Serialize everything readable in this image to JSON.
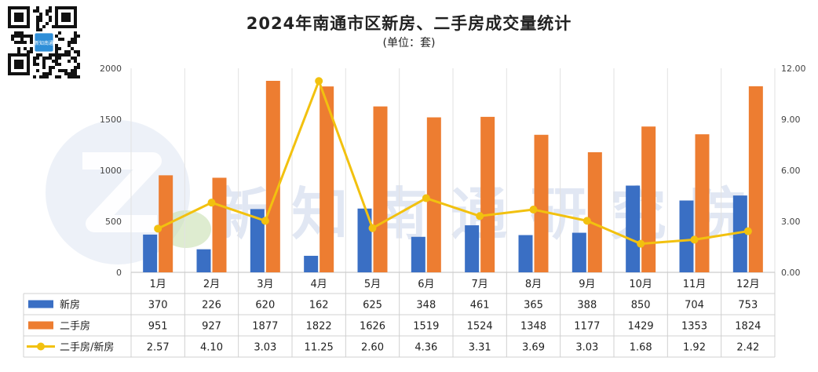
{
  "chart_data": {
    "type": "bar",
    "title": "2024年南通市区新房、二手房成交量统计",
    "subtitle": "(单位：套)",
    "categories": [
      "1月",
      "2月",
      "3月",
      "4月",
      "5月",
      "6月",
      "7月",
      "8月",
      "9月",
      "10月",
      "11月",
      "12月"
    ],
    "series": [
      {
        "name": "新房",
        "type": "bar",
        "axis": "left",
        "color": "#3a6fc4",
        "values": [
          370,
          226,
          620,
          162,
          625,
          348,
          461,
          365,
          388,
          850,
          704,
          753
        ]
      },
      {
        "name": "二手房",
        "type": "bar",
        "axis": "left",
        "color": "#ed7d31",
        "values": [
          951,
          927,
          1877,
          1822,
          1626,
          1519,
          1524,
          1348,
          1177,
          1429,
          1353,
          1824
        ]
      },
      {
        "name": "二手房/新房",
        "type": "line",
        "axis": "right",
        "color": "#f2c10f",
        "values": [
          2.57,
          4.1,
          3.03,
          11.25,
          2.6,
          4.36,
          3.31,
          3.69,
          3.03,
          1.68,
          1.92,
          2.42
        ]
      }
    ],
    "table_values": {
      "新房": [
        "370",
        "226",
        "620",
        "162",
        "625",
        "348",
        "461",
        "365",
        "388",
        "850",
        "704",
        "753"
      ],
      "二手房": [
        "951",
        "927",
        "1877",
        "1822",
        "1626",
        "1519",
        "1524",
        "1348",
        "1177",
        "1429",
        "1353",
        "1824"
      ],
      "二手房/新房": [
        "2.57",
        "4.10",
        "3.03",
        "11.25",
        "2.60",
        "4.36",
        "3.31",
        "3.69",
        "3.03",
        "1.68",
        "1.92",
        "2.42"
      ]
    },
    "ylim_left": [
      0,
      2000
    ],
    "yticks_left": [
      "0",
      "500",
      "1000",
      "1500",
      "2000"
    ],
    "ylim_right": [
      0,
      12
    ],
    "yticks_right": [
      "0.00",
      "3.00",
      "6.00",
      "9.00",
      "12.00"
    ],
    "grid": true,
    "legend": "data-table"
  },
  "watermark": "新知南通研究院",
  "qr_center_text": "新知南通"
}
